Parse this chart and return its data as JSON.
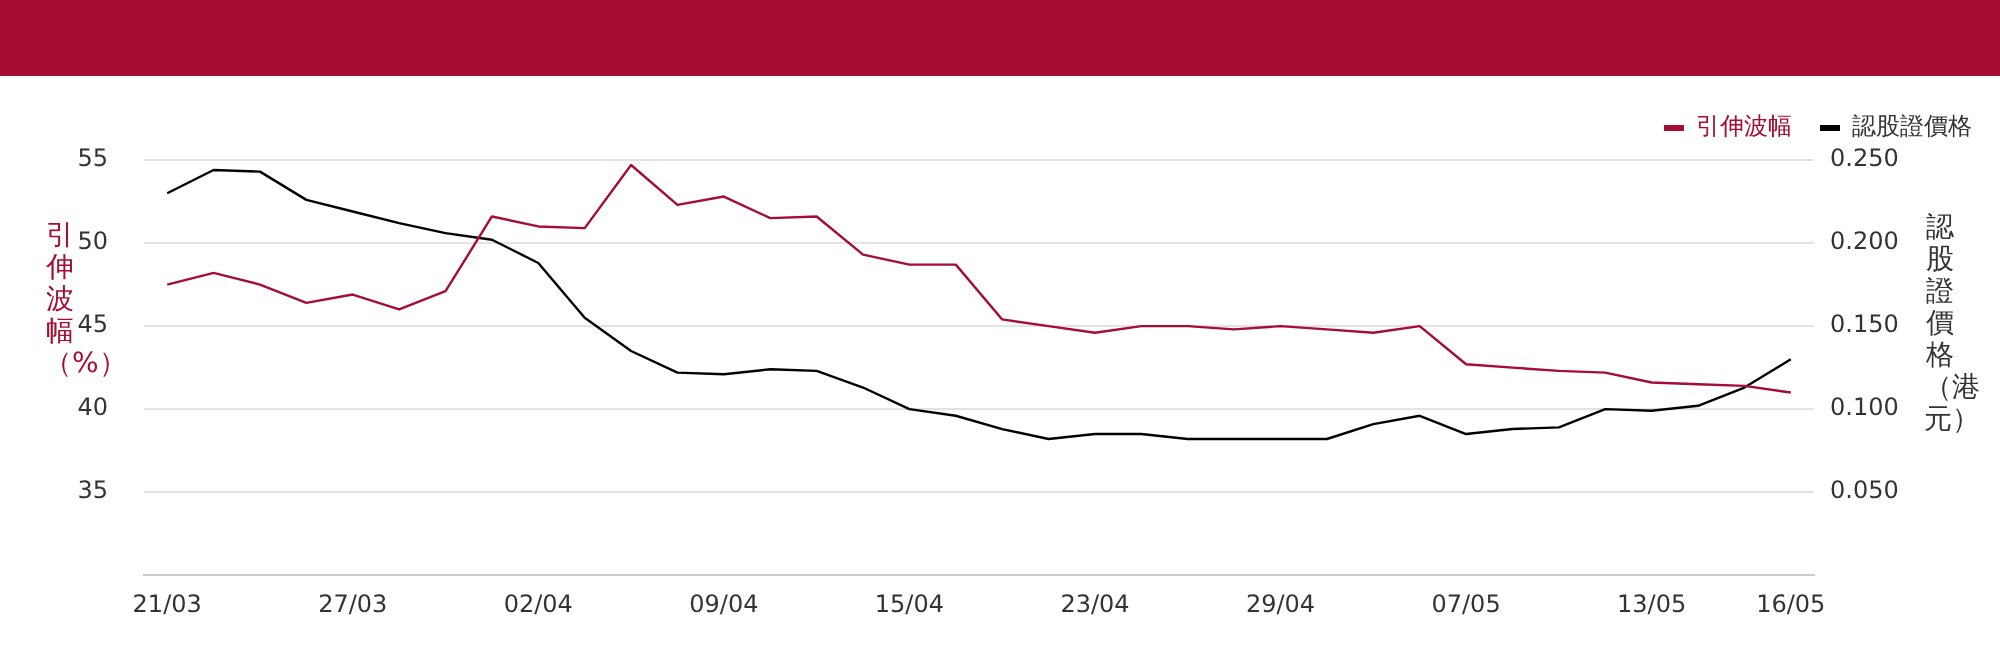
{
  "chart_data": {
    "type": "line",
    "ylabel": "引伸波幅（%）",
    "y2label": "認股證價格（港元）",
    "categories": [
      "21/03",
      null,
      null,
      null,
      "27/03",
      null,
      null,
      null,
      "02/04",
      null,
      null,
      null,
      "09/04",
      null,
      null,
      null,
      "15/04",
      null,
      null,
      null,
      "23/04",
      null,
      null,
      null,
      "29/04",
      null,
      null,
      null,
      "07/05",
      null,
      null,
      null,
      "13/05",
      null,
      null,
      "16/05"
    ],
    "series": [
      {
        "name": "引伸波幅",
        "color": "#a50d35",
        "values": [
          47.5,
          48.2,
          47.5,
          46.4,
          46.9,
          46.0,
          47.1,
          51.6,
          51.0,
          50.9,
          54.7,
          52.3,
          52.8,
          51.5,
          51.6,
          49.3,
          48.7,
          48.7,
          45.4,
          45.0,
          44.6,
          45.0,
          45.0,
          44.8,
          45.0,
          44.8,
          44.6,
          45.0,
          42.7,
          42.5,
          42.3,
          42.2,
          41.6,
          41.5,
          41.4,
          41.0
        ]
      },
      {
        "name": "認股證價格",
        "color": "#000000",
        "axis": "y2",
        "values": [
          0.23,
          0.244,
          0.243,
          0.226,
          0.219,
          0.212,
          0.206,
          0.202,
          0.188,
          0.155,
          0.135,
          0.122,
          0.121,
          0.124,
          0.123,
          0.113,
          0.1,
          0.096,
          0.088,
          0.082,
          0.085,
          0.085,
          0.082,
          0.082,
          0.082,
          0.082,
          0.091,
          0.096,
          0.085,
          0.088,
          0.089,
          0.1,
          0.099,
          0.102,
          0.113,
          0.13
        ]
      }
    ],
    "ylim": [
      30,
      55
    ],
    "yticks": [
      35,
      40,
      45,
      50,
      55
    ],
    "y2lim": [
      0,
      0.25
    ],
    "y2ticks": [
      {
        "value": 0.05,
        "label": "0.050"
      },
      {
        "value": 0.1,
        "label": "0.100"
      },
      {
        "value": 0.15,
        "label": "0.150"
      },
      {
        "value": 0.2,
        "label": "0.200"
      },
      {
        "value": 0.25,
        "label": "0.250"
      }
    ],
    "grid": "y",
    "legend": "top right",
    "marker": "none",
    "line_style": "solid"
  }
}
